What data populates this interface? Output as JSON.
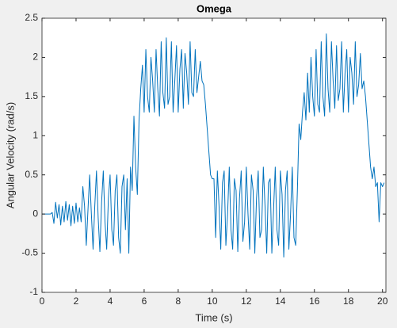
{
  "chart_data": {
    "type": "line",
    "title": "Omega",
    "xlabel": "Time (s)",
    "ylabel": "Angular Velocity (rad/s)",
    "x": [
      0,
      0.1,
      0.2,
      0.3,
      0.4,
      0.5,
      0.6,
      0.7,
      0.8,
      0.9,
      1,
      1.1,
      1.2,
      1.3,
      1.4,
      1.5,
      1.6,
      1.7,
      1.8,
      1.9,
      2,
      2.1,
      2.2,
      2.3,
      2.4,
      2.5,
      2.6,
      2.7,
      2.8,
      2.9,
      3,
      3.1,
      3.2,
      3.3,
      3.4,
      3.5,
      3.6,
      3.7,
      3.8,
      3.9,
      4,
      4.1,
      4.2,
      4.3,
      4.4,
      4.5,
      4.6,
      4.7,
      4.8,
      4.9,
      5,
      5.1,
      5.2,
      5.3,
      5.4,
      5.5,
      5.6,
      5.7,
      5.8,
      5.9,
      6,
      6.1,
      6.2,
      6.3,
      6.4,
      6.5,
      6.6,
      6.7,
      6.8,
      6.9,
      7,
      7.1,
      7.2,
      7.3,
      7.4,
      7.5,
      7.6,
      7.7,
      7.8,
      7.9,
      8,
      8.1,
      8.2,
      8.3,
      8.4,
      8.5,
      8.6,
      8.7,
      8.8,
      8.9,
      9,
      9.1,
      9.2,
      9.3,
      9.4,
      9.5,
      9.6,
      9.7,
      9.8,
      9.9,
      10,
      10.1,
      10.2,
      10.3,
      10.4,
      10.5,
      10.6,
      10.7,
      10.8,
      10.9,
      11,
      11.1,
      11.2,
      11.3,
      11.4,
      11.5,
      11.6,
      11.7,
      11.8,
      11.9,
      12,
      12.1,
      12.2,
      12.3,
      12.4,
      12.5,
      12.6,
      12.7,
      12.8,
      12.9,
      13,
      13.1,
      13.2,
      13.3,
      13.4,
      13.5,
      13.6,
      13.7,
      13.8,
      13.9,
      14,
      14.1,
      14.2,
      14.3,
      14.4,
      14.5,
      14.6,
      14.7,
      14.8,
      14.9,
      15,
      15.1,
      15.2,
      15.3,
      15.4,
      15.5,
      15.6,
      15.7,
      15.8,
      15.9,
      16,
      16.1,
      16.2,
      16.3,
      16.4,
      16.5,
      16.6,
      16.7,
      16.8,
      16.9,
      17,
      17.1,
      17.2,
      17.3,
      17.4,
      17.5,
      17.6,
      17.7,
      17.8,
      17.9,
      18,
      18.1,
      18.2,
      18.3,
      18.4,
      18.5,
      18.6,
      18.7,
      18.8,
      18.9,
      19,
      19.1,
      19.2,
      19.3,
      19.4,
      19.5,
      19.6,
      19.7,
      19.8,
      19.9,
      20,
      20.1
    ],
    "series": [
      {
        "color": "#0072bd",
        "values": [
          0,
          0,
          0,
          0,
          0,
          0,
          0.02,
          -0.12,
          0.15,
          -0.05,
          0.12,
          -0.14,
          0.1,
          -0.1,
          0.16,
          -0.08,
          0.12,
          -0.15,
          0.1,
          -0.12,
          0.14,
          -0.1,
          0.08,
          -0.1,
          0.35,
          0.1,
          -0.4,
          0.05,
          0.5,
          0,
          -0.45,
          0.1,
          0.55,
          -0.05,
          -0.48,
          0.15,
          0.55,
          -0.1,
          -0.45,
          0.2,
          0.5,
          -0.2,
          -0.4,
          0.3,
          0.5,
          -0.3,
          -0.5,
          0.35,
          0.5,
          -0.2,
          0.45,
          -0.5,
          0.6,
          0.3,
          1.25,
          0.6,
          0.25,
          1.2,
          1.6,
          1.9,
          1.3,
          2.1,
          1.5,
          1.3,
          2,
          1.7,
          1.3,
          2.1,
          1.6,
          1.25,
          2.2,
          1.55,
          1.35,
          2.25,
          1.4,
          1.5,
          2.2,
          1.3,
          1.7,
          2.15,
          1.3,
          1.85,
          2.1,
          1.35,
          2.05,
          1.8,
          1.4,
          2.2,
          1.55,
          1.5,
          2.1,
          1.55,
          1.75,
          1.95,
          1.7,
          1.65,
          1.4,
          1.1,
          0.8,
          0.5,
          0.45,
          0.45,
          -0.3,
          0.55,
          0.1,
          -0.45,
          0.4,
          0.55,
          -0.4,
          0,
          0.6,
          -0.2,
          -0.45,
          0.45,
          0.3,
          -0.48,
          0.2,
          0.55,
          -0.35,
          -0.1,
          0.6,
          0,
          -0.45,
          0.5,
          0.3,
          -0.5,
          0.2,
          0.55,
          -0.3,
          -0.2,
          0.6,
          0.1,
          -0.5,
          0.4,
          0.45,
          -0.5,
          0.05,
          0.6,
          -0.2,
          -0.4,
          0.55,
          0.25,
          -0.55,
          0.3,
          0.55,
          -0.45,
          0,
          0.6,
          -0.3,
          -0.4,
          0.3,
          1.15,
          0.95,
          1.3,
          1.55,
          1.2,
          1.8,
          1.3,
          2,
          1.5,
          1.25,
          2.1,
          1.4,
          1.3,
          2.2,
          1.5,
          1.25,
          2.3,
          1.6,
          1.3,
          2.2,
          1.7,
          1.35,
          2.15,
          1.45,
          1.6,
          2.2,
          1.3,
          1.8,
          2.1,
          1.3,
          2,
          1.8,
          1.4,
          2.2,
          1.5,
          1.65,
          2.05,
          1.6,
          1.7,
          1.5,
          1.2,
          0.9,
          0.6,
          0.45,
          0.6,
          0.35,
          0.4,
          -0.1,
          0.4,
          0.35,
          0.4
        ]
      }
    ],
    "xlim": [
      0,
      20.2
    ],
    "ylim": [
      -1,
      2.5
    ],
    "xticks": [
      0,
      2,
      4,
      6,
      8,
      10,
      12,
      14,
      16,
      18,
      20
    ],
    "yticks": [
      -1,
      -0.5,
      0,
      0.5,
      1,
      1.5,
      2,
      2.5
    ],
    "grid": false
  }
}
